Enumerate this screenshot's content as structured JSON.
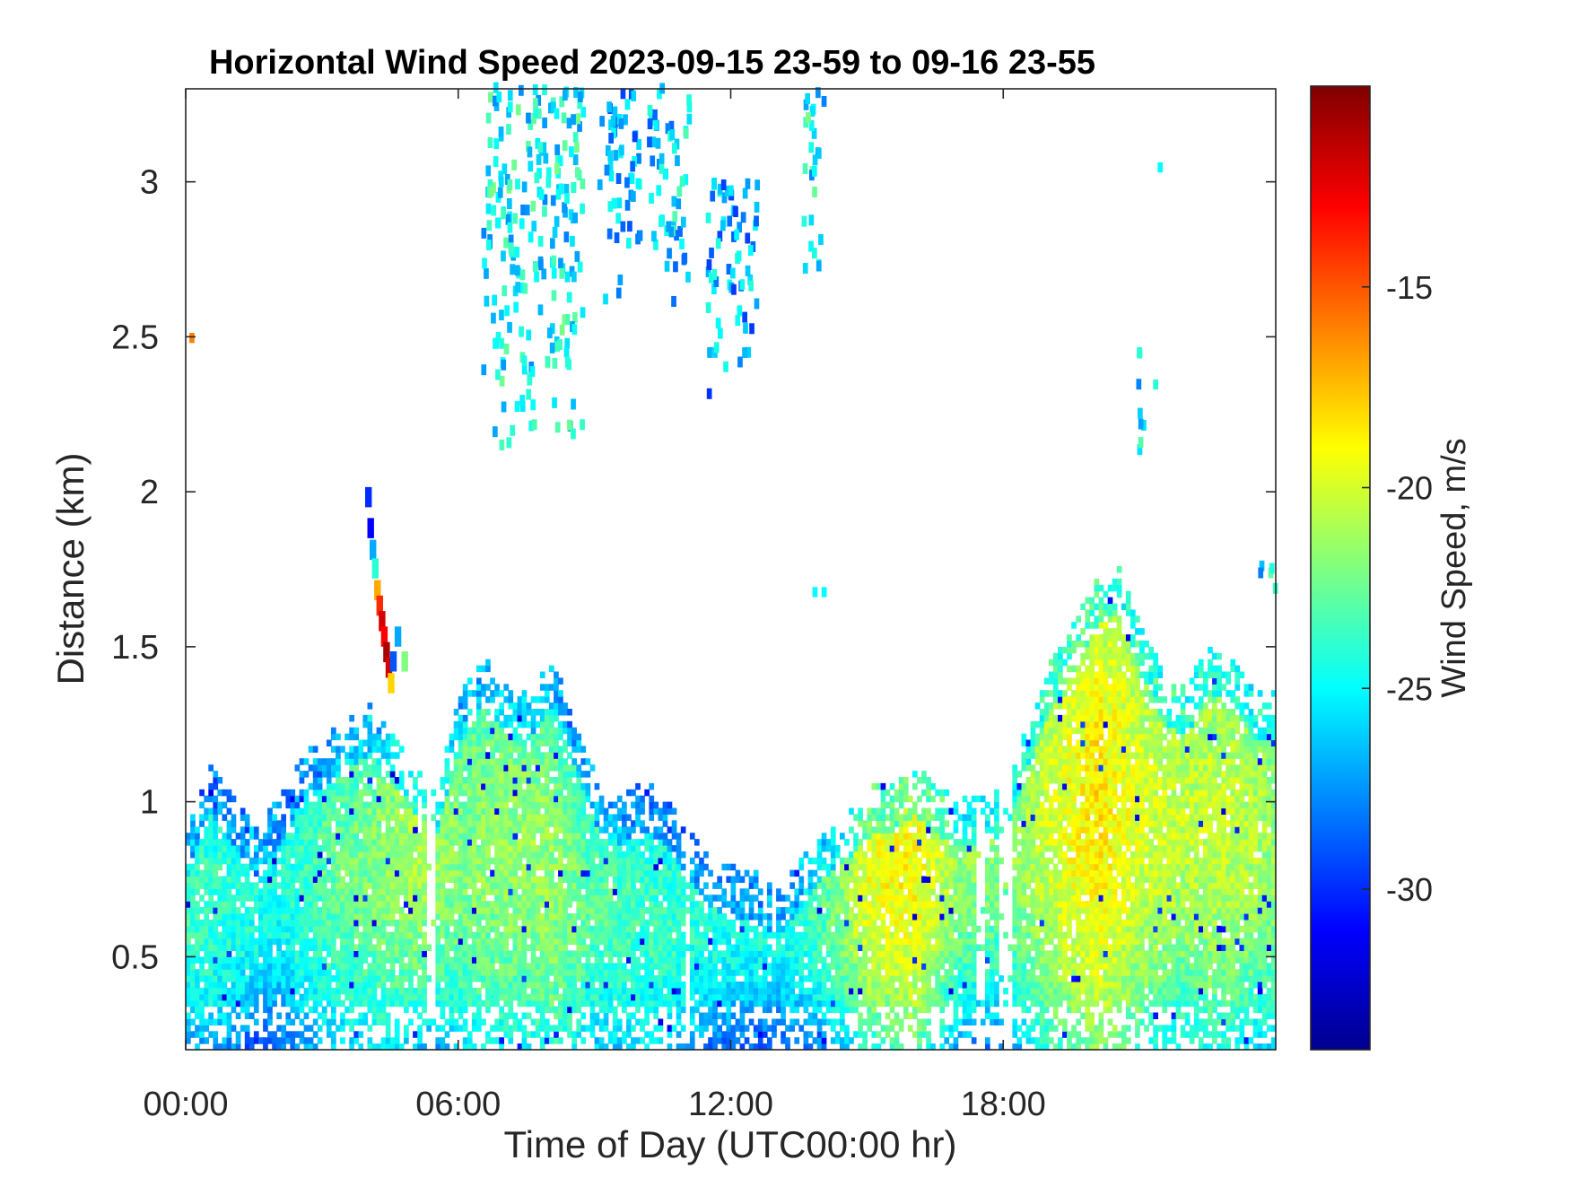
{
  "chart_data": {
    "type": "heatmap",
    "title": "Horizontal Wind Speed 2023-09-15 23-59 to 09-16 23-55",
    "xlabel": "Time of Day (UTC00:00 hr)",
    "ylabel": "Distance (km)",
    "xlim": [
      0,
      24
    ],
    "ylim": [
      0.2,
      3.3
    ],
    "x_ticks": [
      0,
      6,
      12,
      18
    ],
    "x_tick_labels": [
      "00:00",
      "06:00",
      "12:00",
      "18:00"
    ],
    "y_ticks": [
      0.5,
      1,
      1.5,
      2,
      2.5,
      3
    ],
    "y_tick_labels": [
      "0.5",
      "1",
      "1.5",
      "2",
      "2.5",
      "3"
    ],
    "colorbar": {
      "label": "Wind Speed, m/s",
      "range": [
        -34,
        -10
      ],
      "ticks": [
        -30,
        -25,
        -20,
        -15
      ],
      "tick_labels": [
        "-30",
        "-25",
        "-20",
        "-15"
      ],
      "colormap": "jet"
    },
    "units": {
      "x": "hour",
      "y": "km",
      "value": "m/s"
    },
    "boundary_layer_top_km": [
      [
        0.0,
        0.85
      ],
      [
        0.5,
        1.05
      ],
      [
        1.0,
        0.95
      ],
      [
        1.5,
        0.85
      ],
      [
        2.0,
        0.95
      ],
      [
        2.5,
        1.1
      ],
      [
        3.0,
        1.15
      ],
      [
        3.5,
        1.2
      ],
      [
        4.0,
        1.25
      ],
      [
        4.5,
        1.15
      ],
      [
        5.0,
        1.05
      ],
      [
        5.5,
        1.0
      ],
      [
        6.0,
        1.3
      ],
      [
        6.5,
        1.4
      ],
      [
        7.0,
        1.3
      ],
      [
        7.5,
        1.3
      ],
      [
        8.0,
        1.4
      ],
      [
        8.5,
        1.2
      ],
      [
        9.0,
        1.0
      ],
      [
        9.5,
        0.95
      ],
      [
        10.0,
        1.0
      ],
      [
        10.5,
        0.95
      ],
      [
        11.0,
        0.85
      ],
      [
        11.5,
        0.75
      ],
      [
        12.0,
        0.72
      ],
      [
        12.5,
        0.7
      ],
      [
        13.0,
        0.65
      ],
      [
        13.5,
        0.75
      ],
      [
        14.0,
        0.85
      ],
      [
        14.5,
        0.9
      ],
      [
        15.0,
        0.98
      ],
      [
        15.5,
        1.0
      ],
      [
        16.0,
        1.05
      ],
      [
        16.5,
        0.98
      ],
      [
        17.0,
        0.95
      ],
      [
        17.5,
        0.95
      ],
      [
        18.0,
        1.0
      ],
      [
        18.5,
        1.2
      ],
      [
        19.0,
        1.4
      ],
      [
        19.5,
        1.5
      ],
      [
        20.0,
        1.65
      ],
      [
        20.5,
        1.7
      ],
      [
        21.0,
        1.5
      ],
      [
        21.5,
        1.35
      ],
      [
        22.0,
        1.3
      ],
      [
        22.5,
        1.45
      ],
      [
        23.0,
        1.4
      ],
      [
        23.5,
        1.3
      ],
      [
        24.0,
        1.3
      ]
    ],
    "core_speed_mps": [
      [
        0.0,
        -23.5
      ],
      [
        1.0,
        -24.0
      ],
      [
        2.0,
        -24.5
      ],
      [
        3.0,
        -23.0
      ],
      [
        4.0,
        -22.0
      ],
      [
        5.0,
        -21.0
      ],
      [
        6.0,
        -22.0
      ],
      [
        7.0,
        -21.5
      ],
      [
        8.0,
        -21.5
      ],
      [
        9.0,
        -23.0
      ],
      [
        10.0,
        -23.5
      ],
      [
        11.0,
        -24.0
      ],
      [
        12.0,
        -24.5
      ],
      [
        13.0,
        -24.5
      ],
      [
        14.0,
        -23.0
      ],
      [
        15.0,
        -19.5
      ],
      [
        16.0,
        -19.0
      ],
      [
        17.0,
        -21.5
      ],
      [
        18.0,
        -22.0
      ],
      [
        19.0,
        -20.0
      ],
      [
        20.0,
        -18.5
      ],
      [
        21.0,
        -20.0
      ],
      [
        22.0,
        -20.5
      ],
      [
        23.0,
        -20.5
      ],
      [
        24.0,
        -21.5
      ]
    ],
    "core_height_km": [
      [
        0.0,
        0.65
      ],
      [
        4.0,
        0.8
      ],
      [
        7.0,
        0.85
      ],
      [
        10.0,
        0.6
      ],
      [
        13.0,
        0.6
      ],
      [
        15.0,
        0.75
      ],
      [
        16.0,
        0.75
      ],
      [
        18.0,
        0.85
      ],
      [
        20.0,
        1.0
      ],
      [
        22.0,
        0.95
      ],
      [
        24.0,
        0.9
      ]
    ],
    "gaps_hours": [
      [
        5.25,
        5.45
      ],
      [
        10.9,
        11.0
      ],
      [
        17.35,
        17.5
      ],
      [
        17.85,
        18.15
      ]
    ],
    "plumes": [
      {
        "x_center": 7.6,
        "x_width": 2.2,
        "y_bottom": 2.1,
        "y_top": 3.3,
        "speed_mps": -25.0
      },
      {
        "x_center": 9.5,
        "x_width": 0.9,
        "y_bottom": 2.6,
        "y_top": 3.3,
        "speed_mps": -27.0
      },
      {
        "x_center": 10.6,
        "x_width": 0.9,
        "y_bottom": 2.6,
        "y_top": 3.3,
        "speed_mps": -26.0
      },
      {
        "x_center": 12.0,
        "x_width": 1.1,
        "y_bottom": 2.3,
        "y_top": 3.0,
        "speed_mps": -27.0
      },
      {
        "x_center": 13.8,
        "x_width": 0.5,
        "y_bottom": 2.7,
        "y_top": 3.3,
        "speed_mps": -25.0
      },
      {
        "x_center": 21.0,
        "x_width": 0.2,
        "y_bottom": 2.05,
        "y_top": 2.45,
        "speed_mps": -25.5
      },
      {
        "x_center": 23.8,
        "x_width": 0.4,
        "y_bottom": 1.65,
        "y_top": 1.8,
        "speed_mps": -25.5
      }
    ],
    "streak": [
      [
        3.95,
        1.95,
        -30
      ],
      [
        4.0,
        1.85,
        -31
      ],
      [
        4.05,
        1.78,
        -27
      ],
      [
        4.1,
        1.72,
        -24
      ],
      [
        4.15,
        1.65,
        -17
      ],
      [
        4.2,
        1.6,
        -14
      ],
      [
        4.25,
        1.55,
        -12
      ],
      [
        4.3,
        1.5,
        -13
      ],
      [
        4.35,
        1.45,
        -11
      ],
      [
        4.4,
        1.4,
        -12
      ],
      [
        4.45,
        1.35,
        -18
      ],
      [
        4.5,
        1.42,
        -29
      ],
      [
        4.6,
        1.5,
        -27
      ],
      [
        4.75,
        1.42,
        -22
      ]
    ],
    "isolated_points": [
      [
        0.08,
        2.48,
        -16
      ],
      [
        13.8,
        1.66,
        -25
      ],
      [
        14.0,
        1.66,
        -25
      ],
      [
        21.4,
        3.03,
        -25
      ],
      [
        21.3,
        2.33,
        -24
      ],
      [
        20.95,
        2.43,
        -24
      ]
    ]
  }
}
